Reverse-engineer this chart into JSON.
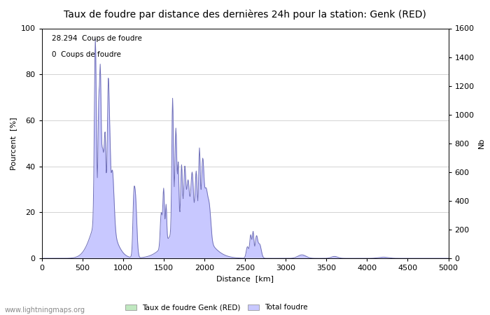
{
  "title": "Taux de foudre par distance des dernières 24h pour la station: Genk (RED)",
  "xlabel": "Distance  [km]",
  "ylabel_left": "Pourcent  [%]",
  "ylabel_right": "Nb",
  "annotation_line1": "28.294  Coups de foudre",
  "annotation_line2": "0  Coups de foudre",
  "xlim": [
    0,
    5000
  ],
  "ylim_left": [
    0,
    100
  ],
  "ylim_right": [
    0,
    1600
  ],
  "xticks": [
    0,
    500,
    1000,
    1500,
    2000,
    2500,
    3000,
    3500,
    4000,
    4500,
    5000
  ],
  "yticks_left": [
    0,
    20,
    40,
    60,
    80,
    100
  ],
  "yticks_right": [
    0,
    200,
    400,
    600,
    800,
    1000,
    1200,
    1400,
    1600
  ],
  "legend_label_green": "Taux de foudre Genk (RED)",
  "legend_label_blue": "Total foudre",
  "fill_color_blue": "#c8c8ff",
  "line_color_blue": "#7070b8",
  "fill_color_green": "#c0e8c0",
  "watermark": "www.lightningmaps.org",
  "background_color": "#ffffff",
  "grid_color": "#cccccc",
  "title_fontsize": 10,
  "axis_fontsize": 8,
  "tick_fontsize": 8
}
